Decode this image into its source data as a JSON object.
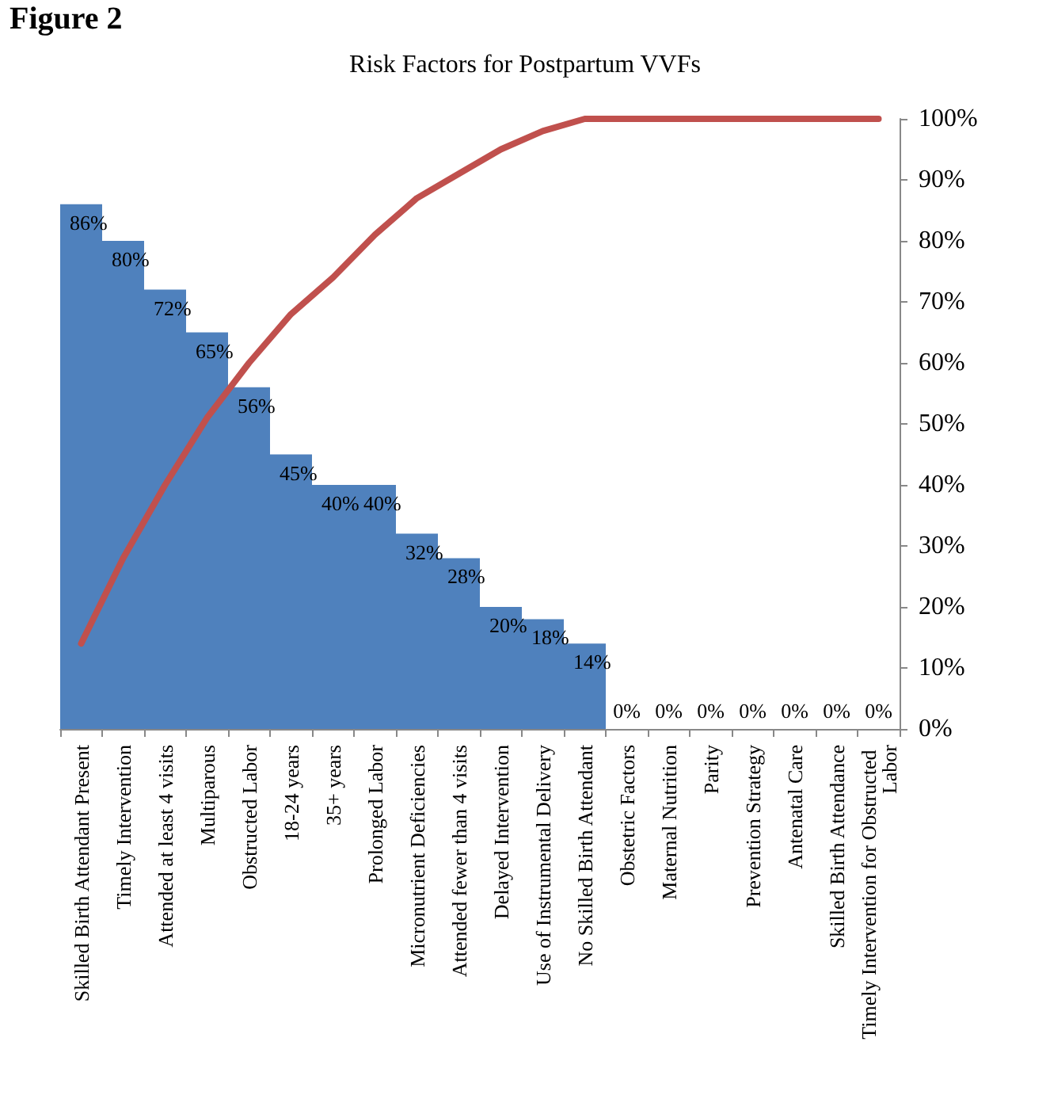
{
  "chart_data": {
    "type": "bar",
    "title": "Risk Factors for Postpartum VVFs",
    "annotations": [
      "Figure 2"
    ],
    "categories": [
      "Skilled Birth Attendant Present",
      "Timely Intervention",
      "Attended at least 4 visits",
      "Multiparous",
      "Obstructed Labor",
      "18-24 years",
      "35+ years",
      "Prolonged Labor",
      "Micronutrient Deficiencies",
      "Attended fewer than 4 visits",
      "Delayed Intervention",
      "Use of Instrumental Delivery",
      "No Skilled Birth Attendant",
      "Obstetric Factors",
      "Maternal Nutrition",
      "Parity",
      "Prevention Strategy",
      "Antenatal Care",
      "Skilled Birth Attendance",
      "Timely Intervention for Obstructed Labor"
    ],
    "series": [
      {
        "color": "#4f81bd",
        "values": [
          86,
          80,
          72,
          65,
          56,
          45,
          40,
          40,
          32,
          28,
          20,
          18,
          14,
          0,
          0,
          0,
          0,
          0,
          0,
          0
        ],
        "value_labels": [
          "86%",
          "80%",
          "72%",
          "65%",
          "56%",
          "45%",
          "40%",
          "40%",
          "32%",
          "28%",
          "20%",
          "18%",
          "14%",
          "0%",
          "0%",
          "0%",
          "0%",
          "0%",
          "0%",
          "0%"
        ]
      },
      {
        "type": "line",
        "color": "#c0504d",
        "values": [
          14,
          28,
          40,
          51,
          60,
          68,
          74,
          81,
          87,
          91,
          95,
          98,
          100,
          100,
          100,
          100,
          100,
          100,
          100,
          100
        ]
      }
    ],
    "ylim": [
      0,
      100
    ],
    "yticks": [
      {
        "value": 0,
        "label": "0%"
      },
      {
        "value": 10,
        "label": "10%"
      },
      {
        "value": 20,
        "label": "20%"
      },
      {
        "value": 30,
        "label": "30%"
      },
      {
        "value": 40,
        "label": "40%"
      },
      {
        "value": 50,
        "label": "50%"
      },
      {
        "value": 60,
        "label": "60%"
      },
      {
        "value": 70,
        "label": "70%"
      },
      {
        "value": 80,
        "label": "80%"
      },
      {
        "value": 90,
        "label": "90%"
      },
      {
        "value": 100,
        "label": "100%"
      }
    ],
    "grid": false,
    "marker": "none"
  }
}
